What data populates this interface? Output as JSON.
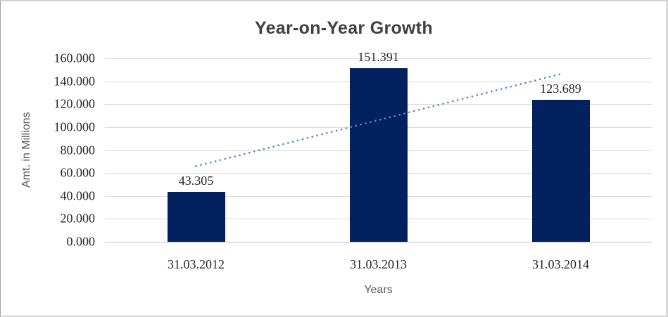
{
  "chart_data": {
    "type": "bar",
    "title": "Year-on-Year Growth",
    "categories": [
      "31.03.2012",
      "31.03.2013",
      "31.03.2014"
    ],
    "values": [
      43.305,
      151.391,
      123.689
    ],
    "data_labels": [
      "43.305",
      "151.391",
      "123.689"
    ],
    "xlabel": "Years",
    "ylabel": "Amt. in Millions",
    "ylim": [
      0,
      160
    ],
    "ytick_step": 20,
    "ytick_labels": [
      "160.000",
      "140.000",
      "120.000",
      "100.000",
      "80.000",
      "60.000",
      "40.000",
      "20.000",
      "0.000"
    ],
    "grid": true,
    "legend_position": "none",
    "bar_color": "#02215e",
    "gridline_color": "#d9d9d9",
    "axis_line_color": "#bfbfbf",
    "trendline": {
      "type": "linear",
      "style": "dotted",
      "color": "#4e88c7",
      "start_value": 65.94,
      "end_value": 146.32
    }
  }
}
